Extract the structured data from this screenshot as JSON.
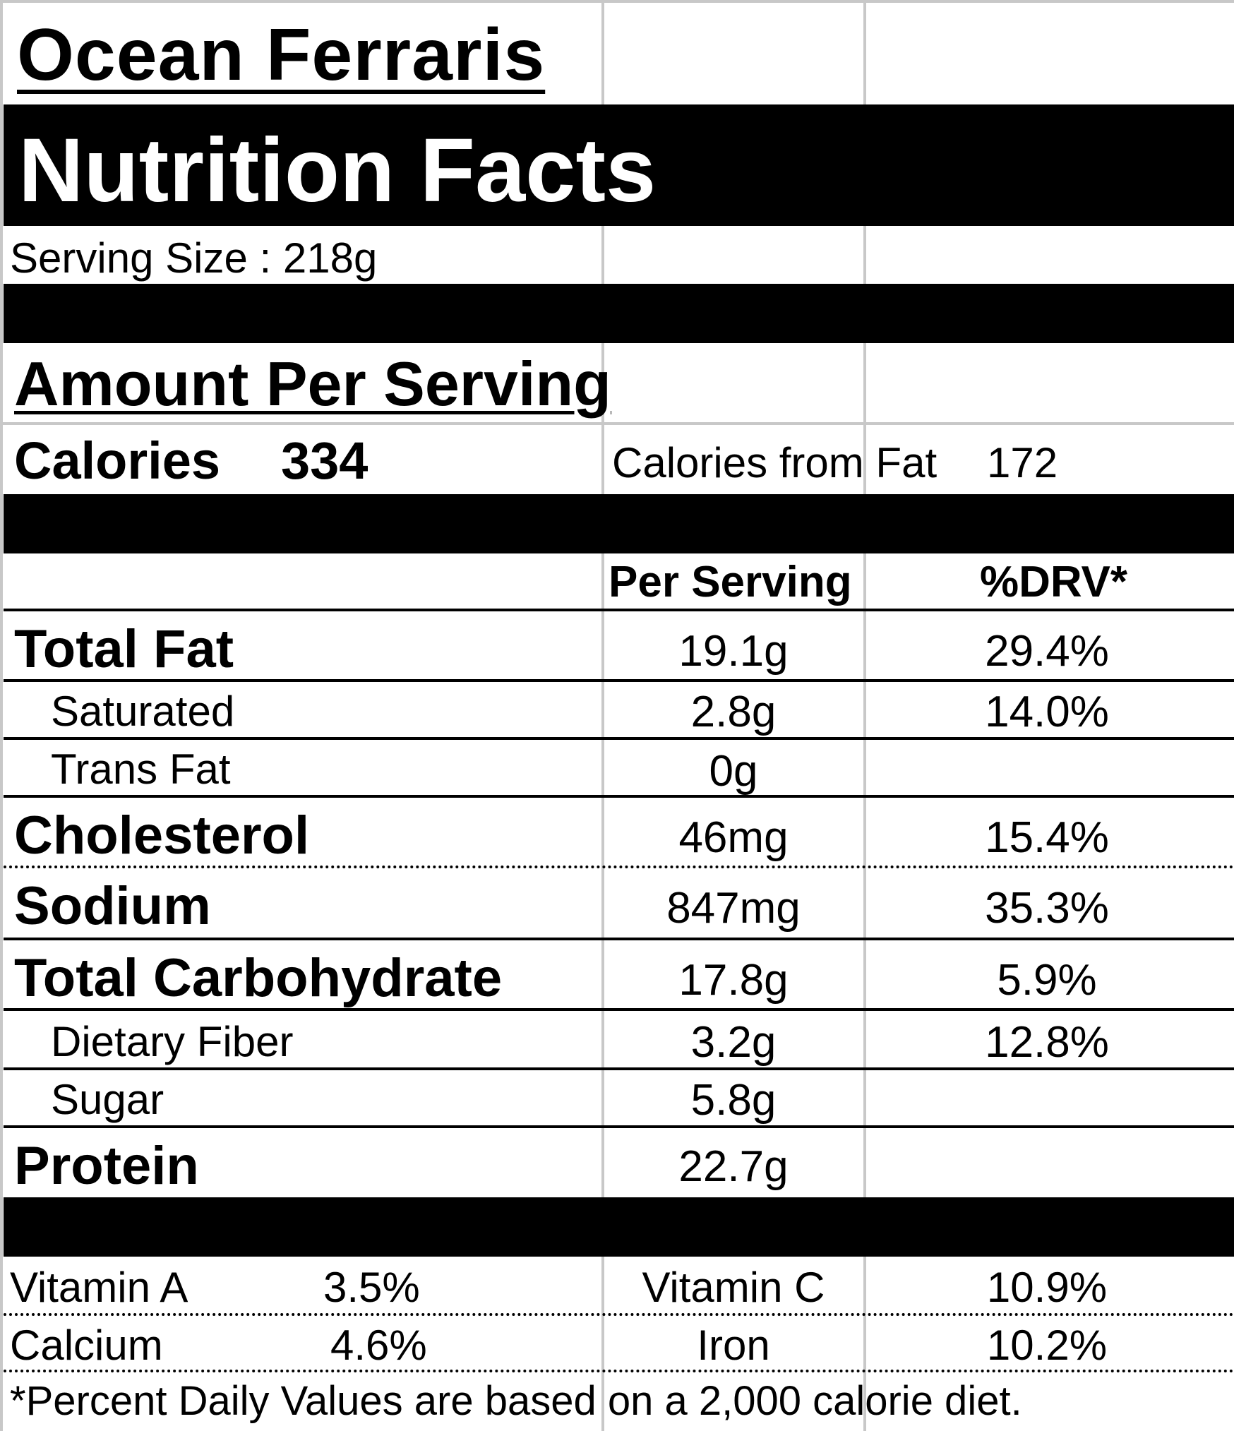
{
  "product_name": "Ocean Ferraris",
  "label_title": "Nutrition Facts",
  "serving_size": "Serving Size  : 218g",
  "amount_per_serving": "Amount Per Serving",
  "calories": {
    "label": "Calories",
    "value": "334"
  },
  "calories_from_fat": {
    "label": "Calories from Fat",
    "value": "172"
  },
  "columns": {
    "per_serving": "Per Serving",
    "drv": "%DRV*"
  },
  "nutrients": [
    {
      "name": "Total Fat",
      "amount": "19.1g",
      "drv": "29.4%"
    },
    {
      "name": "Saturated",
      "amount": "2.8g",
      "drv": "14.0%"
    },
    {
      "name": "Trans Fat",
      "amount": "0g",
      "drv": ""
    },
    {
      "name": "Cholesterol",
      "amount": "46mg",
      "drv": "15.4%"
    },
    {
      "name": "Sodium",
      "amount": "847mg",
      "drv": "35.3%"
    },
    {
      "name": "Total Carbohydrate",
      "amount": "17.8g",
      "drv": "5.9%"
    },
    {
      "name": "Dietary Fiber",
      "amount": "3.2g",
      "drv": "12.8%"
    },
    {
      "name": "Sugar",
      "amount": "5.8g",
      "drv": ""
    },
    {
      "name": "Protein",
      "amount": "22.7g",
      "drv": ""
    }
  ],
  "vitamins": [
    {
      "name": "Vitamin A",
      "value": "3.5%"
    },
    {
      "name": "Vitamin C",
      "value": "10.9%"
    },
    {
      "name": "Calcium",
      "value": "4.6%"
    },
    {
      "name": "Iron",
      "value": "10.2%"
    }
  ],
  "footnote": "*Percent Daily Values are based on a 2,000 calorie diet."
}
